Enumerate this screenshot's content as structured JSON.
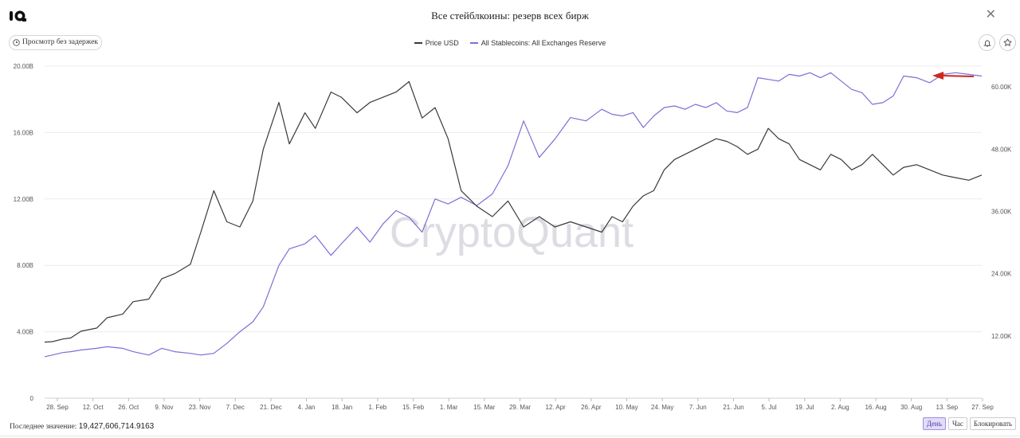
{
  "header": {
    "title": "Все стейблкоины: резерв всех бирж",
    "live_button_label": "Просмотр без задержек"
  },
  "legend": [
    {
      "label": "Price USD",
      "color": "#3a3a3a"
    },
    {
      "label": "All Stablecoins: All Exchanges Reserve",
      "color": "#7b6fd6"
    }
  ],
  "footer": {
    "last_value_label": "Последнее значение:",
    "last_value": "19,427,606,714.9163",
    "buttons": [
      {
        "label": "День",
        "active": true
      },
      {
        "label": "Час",
        "active": false
      },
      {
        "label": "Блокировать",
        "active": false
      }
    ]
  },
  "watermark": "CryptoQuant",
  "chart_data": {
    "type": "line",
    "x_tick_labels": [
      "28. Sep",
      "12. Oct",
      "26. Oct",
      "9. Nov",
      "23. Nov",
      "7. Dec",
      "21. Dec",
      "4. Jan",
      "18. Jan",
      "1. Feb",
      "15. Feb",
      "1. Mar",
      "15. Mar",
      "29. Mar",
      "12. Apr",
      "26. Apr",
      "10. May",
      "24. May",
      "7. Jun",
      "21. Jun",
      "5. Jul",
      "19. Jul",
      "2. Aug",
      "16. Aug",
      "30. Aug",
      "13. Sep",
      "27. Sep"
    ],
    "y_left_ticks": [
      "0",
      "4.00B",
      "8.00B",
      "12.00B",
      "16.00B",
      "20.00B"
    ],
    "y_left_lim": [
      0,
      20000000000
    ],
    "y_right_ticks": [
      "12.00K",
      "24.00K",
      "36.00K",
      "48.00K",
      "60.00K"
    ],
    "y_right_lim": [
      0,
      64000
    ],
    "grid": true,
    "annotation": "red arrow pointing to the reserve peak",
    "series": [
      {
        "name": "All Stablecoins: All Exchanges Reserve",
        "axis": "left",
        "color": "#7b6fd6",
        "x": [
          0,
          3,
          7,
          10,
          14,
          20,
          24,
          30,
          34,
          40,
          45,
          50,
          56,
          60,
          65,
          70,
          75,
          80,
          84,
          90,
          94,
          100,
          104,
          110,
          114,
          120,
          125,
          130,
          135,
          140,
          145,
          150,
          155,
          160,
          166,
          172,
          178,
          184,
          190,
          196,
          202,
          208,
          214,
          218,
          222,
          226,
          230,
          234,
          238,
          242,
          246,
          250,
          254,
          258,
          262,
          266,
          270,
          274,
          278,
          282,
          286,
          290,
          294,
          298,
          302,
          306,
          310,
          314,
          318,
          322,
          326,
          330,
          335,
          340,
          345,
          350,
          355,
          360
        ],
        "values": [
          2.5,
          2.6,
          2.75,
          2.8,
          2.9,
          3.0,
          3.1,
          3.0,
          2.8,
          2.6,
          3.0,
          2.8,
          2.7,
          2.6,
          2.7,
          3.3,
          4.0,
          4.6,
          5.5,
          8.0,
          9.0,
          9.3,
          9.8,
          8.6,
          9.3,
          10.3,
          9.4,
          10.5,
          11.3,
          10.9,
          10.0,
          12.0,
          11.7,
          12.1,
          11.6,
          12.3,
          14.0,
          16.7,
          14.5,
          15.6,
          16.9,
          16.7,
          17.4,
          17.1,
          17.0,
          17.2,
          16.3,
          17.0,
          17.5,
          17.6,
          17.4,
          17.7,
          17.5,
          17.8,
          17.3,
          17.2,
          17.5,
          19.3,
          19.2,
          19.1,
          19.5,
          19.4,
          19.6,
          19.3,
          19.6,
          19.1,
          18.6,
          18.4,
          17.7,
          17.8,
          18.2,
          19.4,
          19.3,
          19.0,
          19.5,
          19.6,
          19.5,
          19.4
        ]
      },
      {
        "name": "Price USD",
        "axis": "right",
        "color": "#3a3a3a",
        "x": [
          0,
          3,
          7,
          10,
          14,
          20,
          24,
          30,
          34,
          40,
          45,
          50,
          56,
          60,
          65,
          70,
          75,
          80,
          84,
          90,
          94,
          100,
          104,
          110,
          114,
          120,
          125,
          130,
          135,
          140,
          145,
          150,
          155,
          160,
          166,
          172,
          178,
          184,
          190,
          196,
          202,
          208,
          214,
          218,
          222,
          226,
          230,
          234,
          238,
          242,
          246,
          250,
          254,
          258,
          262,
          266,
          270,
          274,
          278,
          282,
          286,
          290,
          294,
          298,
          302,
          306,
          310,
          314,
          318,
          322,
          326,
          330,
          335,
          340,
          345,
          350,
          355,
          360
        ],
        "values": [
          10800,
          10900,
          11400,
          11600,
          12900,
          13500,
          15500,
          16200,
          18600,
          19100,
          23000,
          24000,
          25800,
          32000,
          40000,
          34000,
          33000,
          38000,
          48000,
          57000,
          49000,
          55000,
          52000,
          59000,
          58000,
          55000,
          57000,
          58000,
          59000,
          61000,
          54000,
          56000,
          50000,
          40000,
          37000,
          35000,
          38000,
          33000,
          35000,
          33000,
          34000,
          33000,
          32000,
          35000,
          34000,
          37000,
          39000,
          40000,
          44000,
          46000,
          47000,
          48000,
          49000,
          50000,
          49500,
          48500,
          47000,
          48000,
          52000,
          50000,
          49000,
          46000,
          45000,
          44000,
          47000,
          46000,
          44000,
          45000,
          47000,
          45000,
          43000,
          44500,
          45000,
          44000,
          43000,
          42500,
          42000,
          43000
        ]
      }
    ]
  }
}
